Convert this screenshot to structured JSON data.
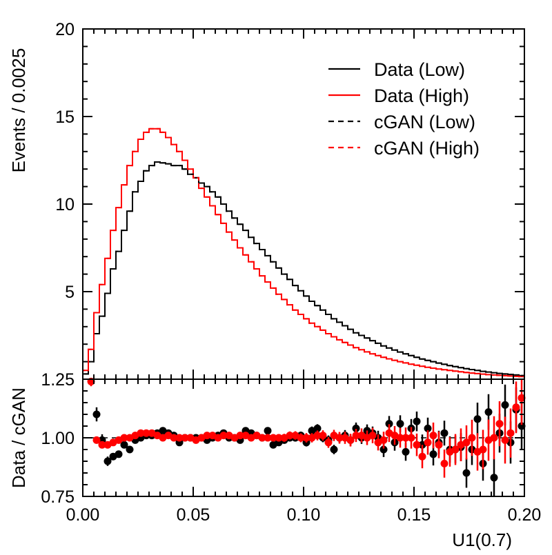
{
  "chart_data": [
    {
      "type": "line",
      "panel": "main",
      "ylabel": "Events / 0.0025",
      "ylim": [
        0,
        20
      ],
      "yticks": [
        {
          "v": 5,
          "label": "5"
        },
        {
          "v": 10,
          "label": "10"
        },
        {
          "v": 15,
          "label": "15"
        },
        {
          "v": 20,
          "label": "20"
        }
      ],
      "xlim": [
        0,
        0.2
      ],
      "bin_width": 0.0025,
      "legend": {
        "placement": "top-right"
      },
      "series": [
        {
          "name": "Data (Low)",
          "color": "#000000",
          "dash": false,
          "values": [
            0.3,
            1,
            2.6,
            3.6,
            4.9,
            6.3,
            7.3,
            8.5,
            9.6,
            10.7,
            11.3,
            11.9,
            12.2,
            12.4,
            12.35,
            12.3,
            12.2,
            12.2,
            12.0,
            11.7,
            11.5,
            11.2,
            11.0,
            10.7,
            10.4,
            10.0,
            9.6,
            9.2,
            8.85,
            8.5,
            8.1,
            7.75,
            7.4,
            7.05,
            6.7,
            6.35,
            6.0,
            5.7,
            5.35,
            5.05,
            4.75,
            4.45,
            4.2,
            3.95,
            3.7,
            3.45,
            3.25,
            3.05,
            2.85,
            2.65,
            2.5,
            2.35,
            2.2,
            2.05,
            1.9,
            1.78,
            1.66,
            1.55,
            1.45,
            1.35,
            1.25,
            1.15,
            1.07,
            1.0,
            0.92,
            0.85,
            0.78,
            0.72,
            0.66,
            0.6,
            0.55,
            0.5,
            0.45,
            0.41,
            0.37,
            0.33,
            0.3,
            0.27,
            0.24,
            0.21
          ]
        },
        {
          "name": "Data (High)",
          "color": "#ff0000",
          "dash": false,
          "values": [
            0.5,
            1.7,
            3.8,
            5.4,
            6.9,
            8.5,
            9.8,
            11.1,
            12.2,
            13.0,
            13.7,
            14.1,
            14.3,
            14.3,
            14.1,
            13.8,
            13.4,
            13.0,
            12.5,
            12.0,
            11.5,
            10.9,
            10.4,
            9.9,
            9.4,
            8.9,
            8.4,
            7.95,
            7.5,
            7.1,
            6.7,
            6.3,
            5.9,
            5.55,
            5.2,
            4.85,
            4.55,
            4.25,
            3.95,
            3.7,
            3.45,
            3.2,
            3.0,
            2.8,
            2.6,
            2.42,
            2.25,
            2.1,
            1.95,
            1.8,
            1.68,
            1.56,
            1.45,
            1.35,
            1.25,
            1.16,
            1.08,
            1.0,
            0.93,
            0.86,
            0.8,
            0.74,
            0.68,
            0.63,
            0.58,
            0.54,
            0.5,
            0.46,
            0.42,
            0.38,
            0.35,
            0.32,
            0.29,
            0.26,
            0.24,
            0.22,
            0.2,
            0.18,
            0.16,
            0.15
          ]
        },
        {
          "name": "cGAN (Low)",
          "color": "#000000",
          "dash": true,
          "values": [
            0.3,
            1,
            2.6,
            3.6,
            4.9,
            6.3,
            7.3,
            8.5,
            9.6,
            10.7,
            11.3,
            11.9,
            12.2,
            12.4,
            12.35,
            12.3,
            12.2,
            12.2,
            12.0,
            11.7,
            11.5,
            11.2,
            11.0,
            10.7,
            10.4,
            10.0,
            9.6,
            9.2,
            8.85,
            8.5,
            8.1,
            7.75,
            7.4,
            7.05,
            6.7,
            6.35,
            6.0,
            5.7,
            5.35,
            5.05,
            4.75,
            4.45,
            4.2,
            3.95,
            3.7,
            3.45,
            3.25,
            3.05,
            2.85,
            2.65,
            2.5,
            2.35,
            2.2,
            2.05,
            1.9,
            1.78,
            1.66,
            1.55,
            1.45,
            1.35,
            1.25,
            1.15,
            1.07,
            1.0,
            0.92,
            0.85,
            0.78,
            0.72,
            0.66,
            0.6,
            0.55,
            0.5,
            0.45,
            0.41,
            0.37,
            0.33,
            0.3,
            0.27,
            0.24,
            0.21
          ]
        },
        {
          "name": "cGAN (High)",
          "color": "#ff0000",
          "dash": true,
          "values": [
            0.5,
            1.7,
            3.8,
            5.4,
            6.9,
            8.5,
            9.8,
            11.1,
            12.2,
            13.0,
            13.7,
            14.1,
            14.3,
            14.3,
            14.1,
            13.8,
            13.4,
            13.0,
            12.5,
            12.0,
            11.5,
            10.9,
            10.4,
            9.9,
            9.4,
            8.9,
            8.4,
            7.95,
            7.5,
            7.1,
            6.7,
            6.3,
            5.9,
            5.55,
            5.2,
            4.85,
            4.55,
            4.25,
            3.95,
            3.7,
            3.45,
            3.2,
            3.0,
            2.8,
            2.6,
            2.42,
            2.25,
            2.1,
            1.95,
            1.8,
            1.68,
            1.56,
            1.45,
            1.35,
            1.25,
            1.16,
            1.08,
            1.0,
            0.93,
            0.86,
            0.8,
            0.74,
            0.68,
            0.63,
            0.58,
            0.54,
            0.5,
            0.46,
            0.42,
            0.38,
            0.35,
            0.32,
            0.29,
            0.26,
            0.24,
            0.22,
            0.2,
            0.18,
            0.16,
            0.15
          ]
        }
      ]
    },
    {
      "type": "scatter",
      "panel": "ratio",
      "xlabel": "U1(0.7)",
      "ylabel": "Data / cGAN",
      "xlim": [
        0,
        0.2
      ],
      "ylim": [
        0.75,
        1.25
      ],
      "reference_line": 1.0,
      "xticks": [
        {
          "v": 0,
          "label": "0.00"
        },
        {
          "v": 0.05,
          "label": "0.05"
        },
        {
          "v": 0.1,
          "label": "0.10"
        },
        {
          "v": 0.15,
          "label": "0.15"
        },
        {
          "v": 0.2,
          "label": "0.20"
        }
      ],
      "yticks": [
        {
          "v": 0.75,
          "label": "0.75"
        },
        {
          "v": 1.0,
          "label": "1.00"
        },
        {
          "v": 1.25,
          "label": "1.25"
        }
      ],
      "series": [
        {
          "name": "Low",
          "color": "#000000",
          "x": [
            0.00625,
            0.00875,
            0.01125,
            0.01375,
            0.01625,
            0.01875,
            0.02125,
            0.02375,
            0.02625,
            0.02875,
            0.03125,
            0.03375,
            0.03625,
            0.03875,
            0.04125,
            0.04375,
            0.04625,
            0.04875,
            0.05125,
            0.05375,
            0.05625,
            0.05875,
            0.06125,
            0.06375,
            0.06625,
            0.06875,
            0.07125,
            0.07375,
            0.07625,
            0.07875,
            0.08125,
            0.08375,
            0.08625,
            0.08875,
            0.09125,
            0.09375,
            0.09625,
            0.09875,
            0.10125,
            0.10375,
            0.10625,
            0.10875,
            0.11125,
            0.11375,
            0.11625,
            0.11875,
            0.12125,
            0.12375,
            0.12625,
            0.12875,
            0.13125,
            0.13375,
            0.13625,
            0.13875,
            0.14125,
            0.14375,
            0.14625,
            0.14875,
            0.15125,
            0.15375,
            0.15625,
            0.15875,
            0.16125,
            0.16375,
            0.16625,
            0.16875,
            0.17125,
            0.17375,
            0.17625,
            0.17875,
            0.18125,
            0.18375,
            0.18625,
            0.18875,
            0.19125,
            0.19375,
            0.19625,
            0.19875
          ],
          "y": [
            1.1,
            0.99,
            0.9,
            0.92,
            0.93,
            0.97,
            0.95,
            0.99,
            1.0,
            1.01,
            1.01,
            1.02,
            1.03,
            1.02,
            1.01,
            0.98,
            1.0,
            1.0,
            1.0,
            1.0,
            0.99,
            1.0,
            1.01,
            1.02,
            1.0,
            1.0,
            0.99,
            1.03,
            1.02,
            1.01,
            1.0,
            1.03,
            0.97,
            0.98,
            0.99,
            1.0,
            1.0,
            1.01,
            0.98,
            1.03,
            1.04,
            1.0,
            0.99,
            0.95,
            1.0,
            1.01,
            0.99,
            1.04,
            1.0,
            1.03,
            1.02,
            1.0,
            0.95,
            1.06,
            0.98,
            1.06,
            0.94,
            1.04,
            1.07,
            0.97,
            1.04,
            0.93,
            0.98,
            1.02,
            0.95,
            0.95,
            0.96,
            0.85,
            0.95,
            1.08,
            0.89,
            1.11,
            0.83,
            1.02,
            1.14,
            0.98,
            1.12,
            1.05
          ],
          "err": [
            0.03,
            0.025,
            0.02,
            0.015,
            0.012,
            0.01,
            0.01,
            0.01,
            0.01,
            0.01,
            0.01,
            0.01,
            0.01,
            0.01,
            0.01,
            0.01,
            0.01,
            0.01,
            0.01,
            0.01,
            0.01,
            0.01,
            0.01,
            0.01,
            0.01,
            0.01,
            0.01,
            0.01,
            0.012,
            0.012,
            0.012,
            0.012,
            0.014,
            0.014,
            0.014,
            0.015,
            0.016,
            0.016,
            0.017,
            0.018,
            0.018,
            0.019,
            0.02,
            0.02,
            0.022,
            0.023,
            0.024,
            0.025,
            0.026,
            0.027,
            0.028,
            0.03,
            0.032,
            0.033,
            0.035,
            0.036,
            0.038,
            0.04,
            0.042,
            0.044,
            0.046,
            0.048,
            0.05,
            0.053,
            0.056,
            0.058,
            0.06,
            0.063,
            0.066,
            0.07,
            0.073,
            0.076,
            0.08,
            0.083,
            0.087,
            0.09,
            0.095,
            0.1
          ]
        },
        {
          "name": "High",
          "color": "#ff0000",
          "x": [
            0.00375,
            0.00625,
            0.00875,
            0.01125,
            0.01375,
            0.01625,
            0.01875,
            0.02125,
            0.02375,
            0.02625,
            0.02875,
            0.03125,
            0.03375,
            0.03625,
            0.03875,
            0.04125,
            0.04375,
            0.04625,
            0.04875,
            0.05125,
            0.05375,
            0.05625,
            0.05875,
            0.06125,
            0.06375,
            0.06625,
            0.06875,
            0.07125,
            0.07375,
            0.07625,
            0.07875,
            0.08125,
            0.08375,
            0.08625,
            0.08875,
            0.09125,
            0.09375,
            0.09625,
            0.09875,
            0.10125,
            0.10375,
            0.10625,
            0.10875,
            0.11125,
            0.11375,
            0.11625,
            0.11875,
            0.12125,
            0.12375,
            0.12625,
            0.12875,
            0.13125,
            0.13375,
            0.13625,
            0.13875,
            0.14125,
            0.14375,
            0.14625,
            0.14875,
            0.15125,
            0.15375,
            0.15625,
            0.15875,
            0.16125,
            0.16375,
            0.16625,
            0.16875,
            0.17125,
            0.17375,
            0.17625,
            0.17875,
            0.18125,
            0.18375,
            0.18625,
            0.18875,
            0.19125,
            0.19375,
            0.19625,
            0.19875
          ],
          "y": [
            1.24,
            0.99,
            0.97,
            0.97,
            0.98,
            0.99,
            1.0,
            1.0,
            1.01,
            1.02,
            1.02,
            1.02,
            1.01,
            1.0,
            1.01,
            1.0,
            1.0,
            1.0,
            1.0,
            0.99,
            1.0,
            1.01,
            1.01,
            1.0,
            1.01,
            1.01,
            1.0,
            1.01,
            1.01,
            1.0,
            1.01,
            1.0,
            1.0,
            1.0,
            1.0,
            1.0,
            1.01,
            1.01,
            1.0,
            1.0,
            1.0,
            1.01,
            1.01,
            0.98,
            1.01,
            1.0,
            1.0,
            0.99,
            1.01,
            1.01,
            1.0,
            1.01,
            0.98,
            0.99,
            1.02,
            1.01,
            1.0,
            1.0,
            1.0,
            0.97,
            0.92,
            0.98,
            1.01,
            0.97,
            0.89,
            0.94,
            0.95,
            0.97,
            0.98,
            1.0,
            0.94,
            0.95,
            0.99,
            1.0,
            1.06,
            0.99,
            1.02,
            1.13,
            1.17
          ],
          "err": [
            0.02,
            0.015,
            0.012,
            0.01,
            0.01,
            0.01,
            0.01,
            0.01,
            0.01,
            0.01,
            0.01,
            0.01,
            0.01,
            0.01,
            0.01,
            0.01,
            0.01,
            0.01,
            0.01,
            0.01,
            0.01,
            0.01,
            0.01,
            0.01,
            0.012,
            0.012,
            0.012,
            0.012,
            0.013,
            0.013,
            0.014,
            0.014,
            0.015,
            0.015,
            0.016,
            0.017,
            0.017,
            0.018,
            0.019,
            0.02,
            0.02,
            0.021,
            0.022,
            0.023,
            0.024,
            0.025,
            0.026,
            0.027,
            0.028,
            0.03,
            0.031,
            0.033,
            0.034,
            0.036,
            0.038,
            0.04,
            0.042,
            0.044,
            0.046,
            0.048,
            0.05,
            0.052,
            0.055,
            0.057,
            0.06,
            0.063,
            0.066,
            0.07,
            0.073,
            0.077,
            0.08,
            0.084,
            0.088,
            0.092,
            0.096,
            0.1,
            0.105,
            0.11,
            0.115
          ]
        }
      ]
    }
  ]
}
